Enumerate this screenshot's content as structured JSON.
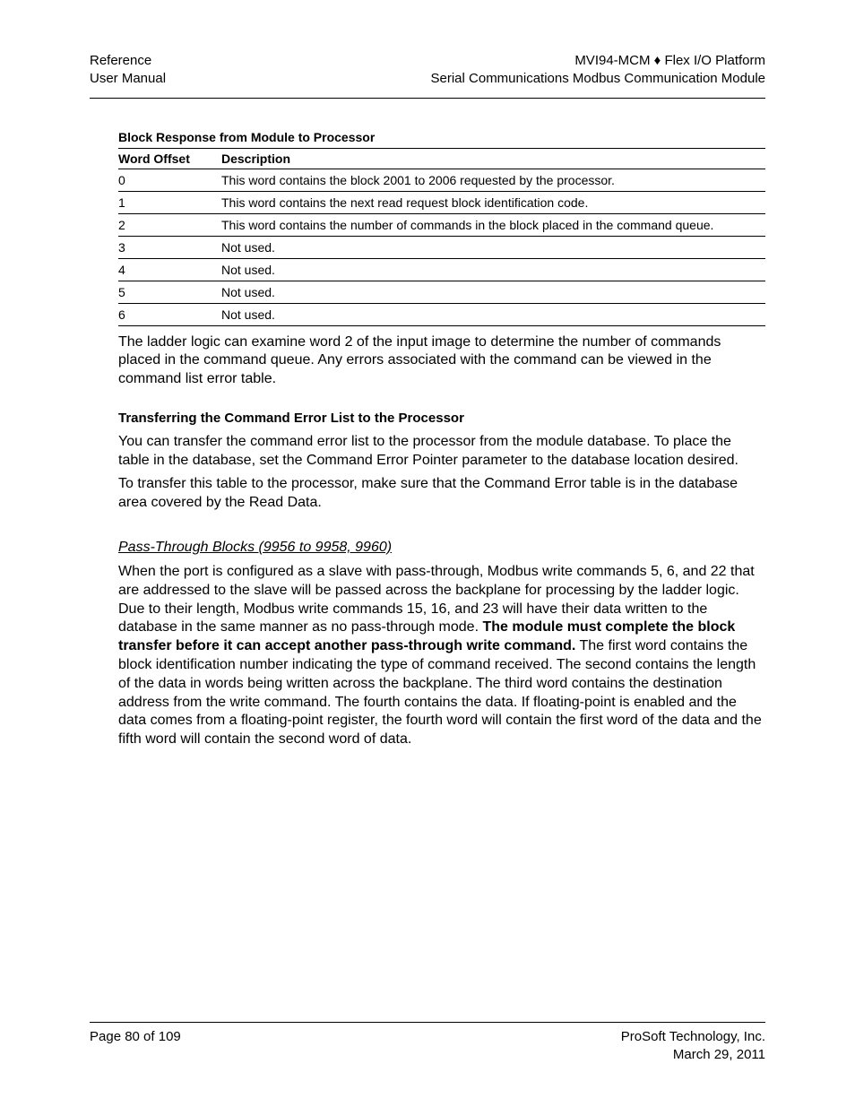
{
  "header": {
    "left_line1": "Reference",
    "left_line2": "User Manual",
    "right_line1": "MVI94-MCM ♦ Flex I/O Platform",
    "right_line2": "Serial Communications Modbus Communication Module"
  },
  "table": {
    "title": "Block Response from Module to Processor",
    "columns": [
      "Word Offset",
      "Description"
    ],
    "rows": [
      [
        "0",
        "This word contains the block 2001 to 2006 requested by the processor."
      ],
      [
        "1",
        "This word contains the next read request block identification code."
      ],
      [
        "2",
        "This word contains the number of commands in the block placed in the command queue."
      ],
      [
        "3",
        "Not used."
      ],
      [
        "4",
        "Not used."
      ],
      [
        "5",
        "Not used."
      ],
      [
        "6",
        "Not used."
      ]
    ]
  },
  "para1": "The ladder logic can examine word 2 of the input image to determine the number of commands placed in the command queue. Any errors associated with the command can be viewed in the command list error table.",
  "heading1": "Transferring the Command Error List to the Processor",
  "para2": "You can transfer the command error list to the processor from the module database. To place the table in the database, set the Command Error Pointer parameter to the database location desired.",
  "para3": "To transfer this table to the processor, make sure that the Command Error table is in the database area covered by the Read Data.",
  "heading2": "Pass-Through Blocks (9956 to 9958, 9960)",
  "para4_part1": "When the port is configured as a slave with pass-through, Modbus write commands 5, 6, and 22 that are addressed to the slave will be passed across the backplane for processing by the ladder logic. Due to their length, Modbus write commands 15, 16, and 23 will have their data written to the database in the same manner as no pass-through mode. ",
  "para4_bold": "The module must complete the block transfer before it can accept another pass-through write command.",
  "para4_part2": " The first word contains the block identification number indicating the type of command received. The second contains the length of the data in words being written across the backplane. The third word contains the destination address from the write command. The fourth contains the data. If floating-point is enabled and the data comes from a floating-point register, the fourth word will contain the first word of the data and the fifth word will contain the second word of data.",
  "footer": {
    "left": "Page 80 of 109",
    "right_line1": "ProSoft Technology, Inc.",
    "right_line2": "March 29, 2011"
  }
}
